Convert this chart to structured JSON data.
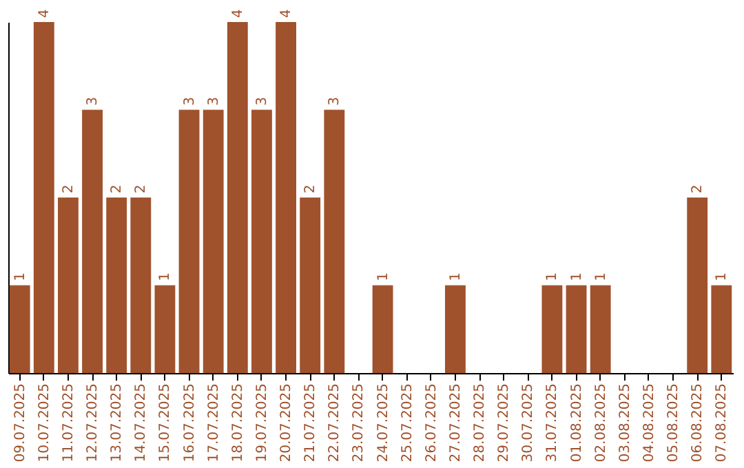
{
  "chart_data": {
    "type": "bar",
    "categories": [
      "09.07.2025",
      "10.07.2025",
      "11.07.2025",
      "12.07.2025",
      "13.07.2025",
      "14.07.2025",
      "15.07.2025",
      "16.07.2025",
      "17.07.2025",
      "18.07.2025",
      "19.07.2025",
      "20.07.2025",
      "21.07.2025",
      "22.07.2025",
      "23.07.2025",
      "24.07.2025",
      "25.07.2025",
      "26.07.2025",
      "27.07.2025",
      "28.07.2025",
      "29.07.2025",
      "30.07.2025",
      "31.07.2025",
      "01.08.2025",
      "02.08.2025",
      "03.08.2025",
      "04.08.2025",
      "05.08.2025",
      "06.08.2025",
      "07.08.2025"
    ],
    "values": [
      1,
      4,
      2,
      3,
      2,
      2,
      1,
      3,
      3,
      4,
      3,
      4,
      2,
      3,
      0,
      1,
      0,
      0,
      1,
      0,
      0,
      0,
      1,
      1,
      1,
      0,
      0,
      0,
      2,
      1
    ],
    "value_labels": [
      "1",
      "4",
      "2",
      "3",
      "2",
      "2",
      "1",
      "3",
      "3",
      "4",
      "3",
      "4",
      "2",
      "3",
      null,
      "1",
      null,
      null,
      "1",
      null,
      null,
      null,
      "1",
      "1",
      "1",
      null,
      null,
      null,
      "2",
      "1"
    ],
    "color": "#a0522d",
    "ylim": [
      0,
      4
    ],
    "tick_labels": "x",
    "grid": false
  }
}
